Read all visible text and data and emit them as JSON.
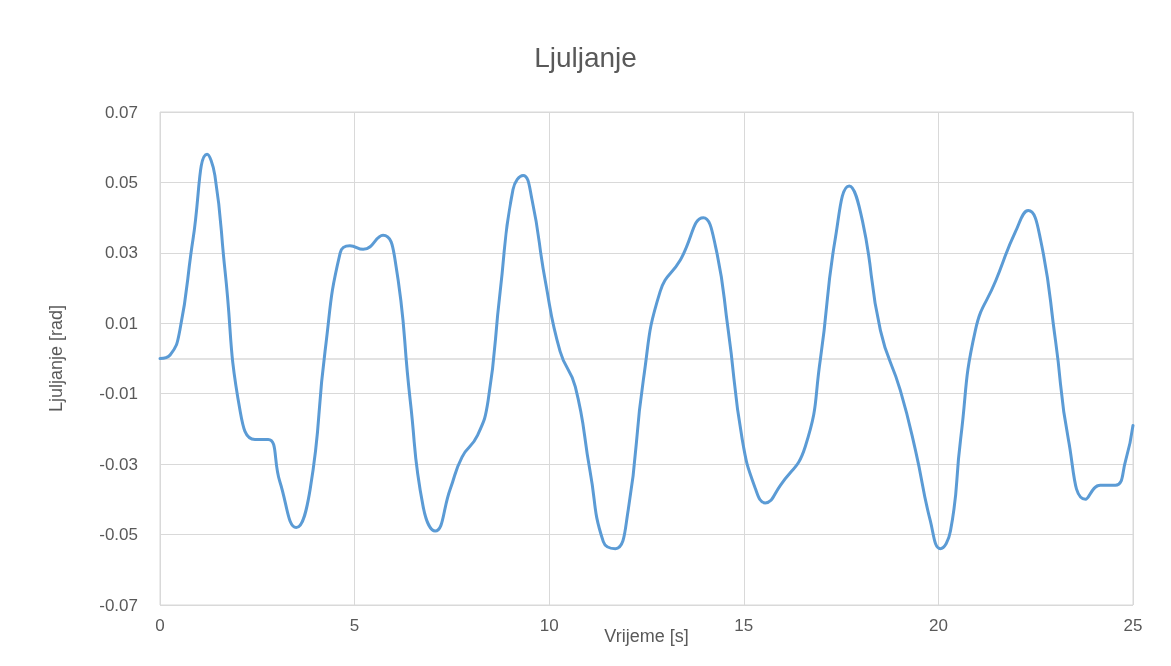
{
  "chart_data": {
    "type": "line",
    "title": "Ljuljanje",
    "xlabel": "Vrijeme [s]",
    "ylabel": "Ljuljanje [rad]",
    "x": [
      0,
      0.26,
      0.51,
      0.85,
      1.21,
      1.41,
      1.67,
      2.06,
      2.44,
      2.78,
      3.08,
      3.5,
      3.86,
      4.24,
      4.63,
      4.88,
      5.22,
      5.73,
      6.04,
      6.43,
      6.76,
      7.07,
      7.46,
      7.76,
      8.15,
      8.43,
      8.74,
      9.07,
      9.33,
      9.56,
      9.9,
      10.28,
      10.67,
      11.05,
      11.39,
      11.7,
      12.03,
      12.42,
      12.85,
      13.37,
      13.96,
      14.27,
      14.6,
      14.96,
      15.3,
      15.55,
      15.94,
      16.58,
      16.97,
      17.35,
      17.71,
      18.05,
      18.51,
      19.02,
      19.41,
      19.79,
      20.05,
      20.31,
      20.57,
      20.95,
      21.47,
      21.98,
      22.31,
      22.62,
      23.01,
      23.34,
      23.78,
      24.16,
      24.55,
      24.81,
      25
    ],
    "series": [
      {
        "color": "#5b9bd5",
        "values": [
          0,
          0.001,
          0.008,
          0.034,
          0.058,
          0.052,
          0.025,
          -0.015,
          -0.023,
          -0.023,
          -0.035,
          -0.048,
          -0.037,
          0.002,
          0.03,
          0.032,
          0.031,
          0.035,
          0.028,
          -0.012,
          -0.042,
          -0.049,
          -0.037,
          -0.028,
          -0.022,
          -0.012,
          0.019,
          0.048,
          0.052,
          0.045,
          0.022,
          0.002,
          -0.008,
          -0.032,
          -0.052,
          -0.054,
          -0.043,
          -0.006,
          0.019,
          0.028,
          0.04,
          0.032,
          0.008,
          -0.023,
          -0.037,
          -0.041,
          -0.036,
          -0.025,
          0,
          0.034,
          0.049,
          0.039,
          0.008,
          -0.009,
          -0.026,
          -0.046,
          -0.054,
          -0.049,
          -0.023,
          0.008,
          0.022,
          0.036,
          0.042,
          0.034,
          0.005,
          -0.023,
          -0.04,
          -0.036,
          -0.036,
          -0.029,
          -0.019
        ]
      }
    ],
    "xlim": [
      0,
      25
    ],
    "xticks": [
      0,
      5,
      10,
      15,
      20,
      25
    ],
    "ylim": [
      -0.07,
      0.07
    ],
    "yticks": [
      -0.07,
      -0.05,
      -0.03,
      -0.01,
      0.01,
      0.03,
      0.05,
      0.07
    ],
    "grid": true,
    "marker": "none",
    "line_style": "solid"
  }
}
